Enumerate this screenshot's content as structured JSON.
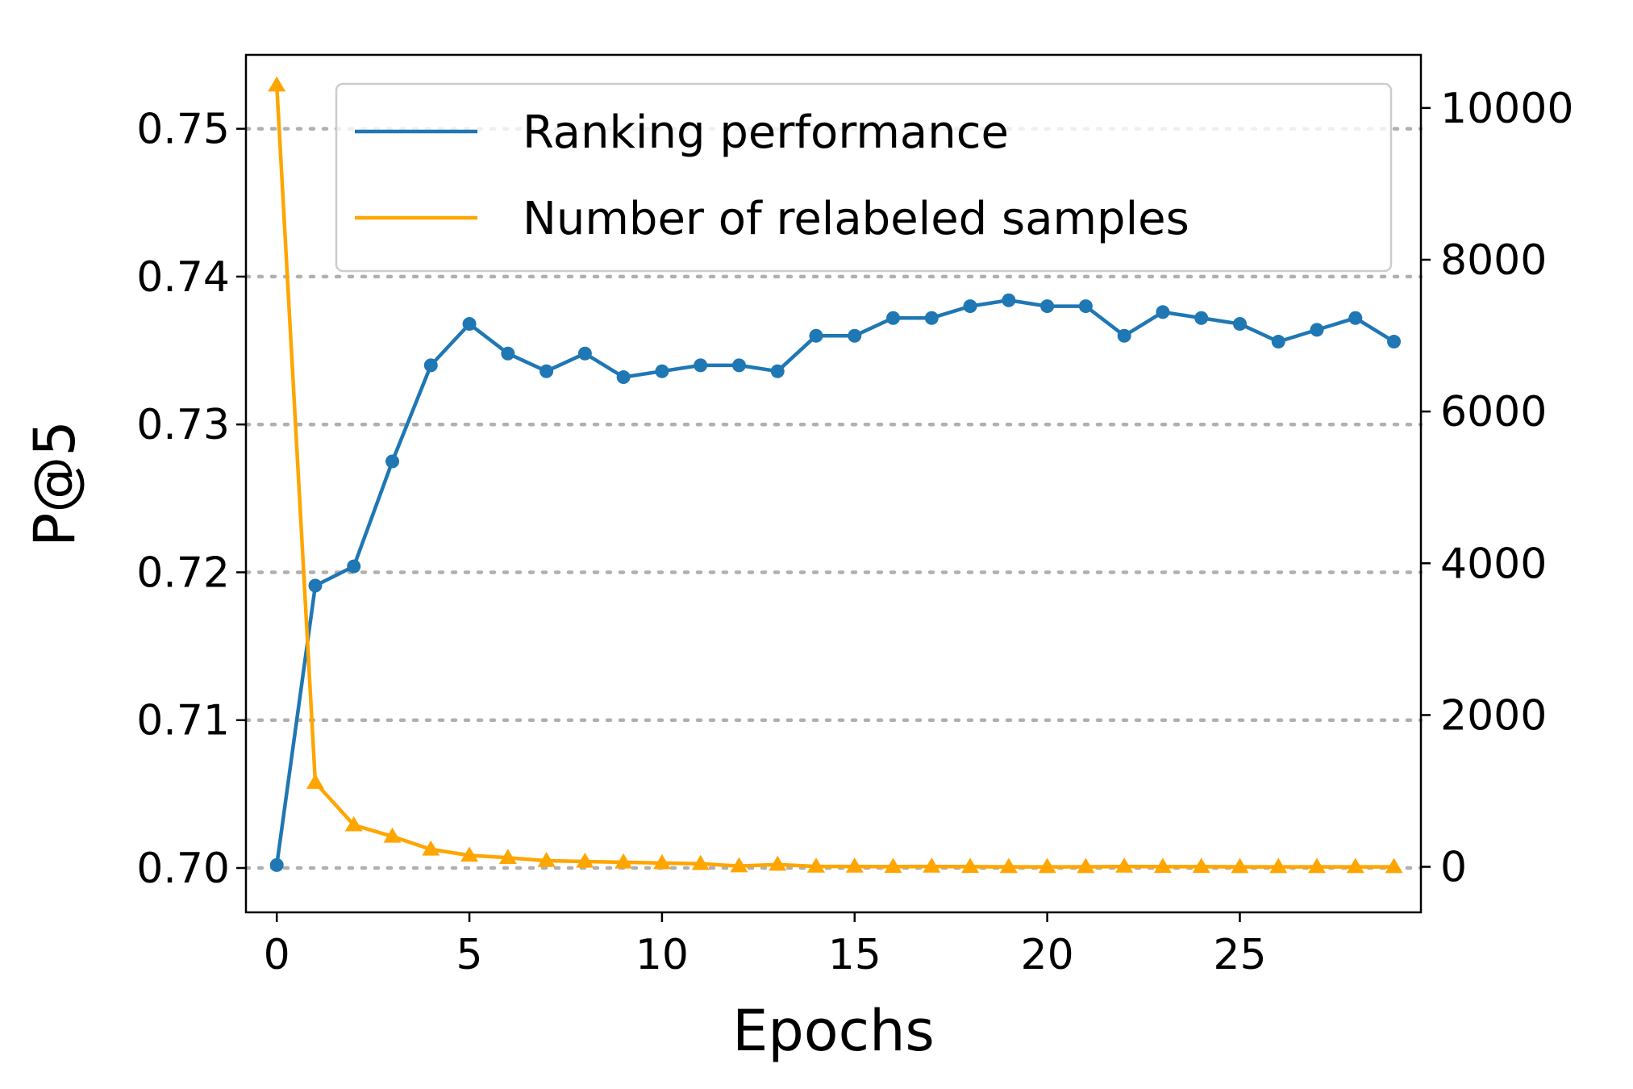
{
  "chart_data": {
    "type": "line",
    "title": "",
    "xlabel": "Epochs",
    "ylabel": "P@5",
    "y2label": "",
    "xlim": [
      -0.8,
      29.7
    ],
    "ylim": [
      0.697,
      0.755
    ],
    "y2lim": [
      -600,
      10700
    ],
    "xticks": [
      0,
      5,
      10,
      15,
      20,
      25
    ],
    "yticks": [
      0.7,
      0.71,
      0.72,
      0.73,
      0.74,
      0.75
    ],
    "ytick_labels": [
      "0.70",
      "0.71",
      "0.72",
      "0.73",
      "0.74",
      "0.75"
    ],
    "y2ticks": [
      0,
      2000,
      4000,
      6000,
      8000,
      10000
    ],
    "grid": "horizontal-dotted",
    "legend_position": "top-right",
    "series": [
      {
        "name": "Ranking performance",
        "axis": "left",
        "color": "#1f77b4",
        "marker": "circle",
        "x": [
          0,
          1,
          2,
          3,
          4,
          5,
          6,
          7,
          8,
          9,
          10,
          11,
          12,
          13,
          14,
          15,
          16,
          17,
          18,
          19,
          20,
          21,
          22,
          23,
          24,
          25,
          26,
          27,
          28,
          29
        ],
        "values": [
          0.7002,
          0.7191,
          0.7204,
          0.7275,
          0.734,
          0.7368,
          0.7348,
          0.7336,
          0.7348,
          0.7332,
          0.7336,
          0.734,
          0.734,
          0.7336,
          0.736,
          0.736,
          0.7372,
          0.7372,
          0.738,
          0.7384,
          0.738,
          0.738,
          0.736,
          0.7376,
          0.7372,
          0.7368,
          0.7356,
          0.7364,
          0.7372,
          0.7356
        ]
      },
      {
        "name": "Number of relabeled samples",
        "axis": "right",
        "color": "#ffa500",
        "marker": "triangle",
        "x": [
          0,
          1,
          2,
          3,
          4,
          5,
          6,
          7,
          8,
          9,
          10,
          11,
          12,
          13,
          14,
          15,
          16,
          17,
          18,
          19,
          20,
          21,
          22,
          23,
          24,
          25,
          26,
          27,
          28,
          29
        ],
        "values": [
          10300,
          1110,
          550,
          400,
          230,
          150,
          120,
          80,
          70,
          60,
          50,
          40,
          10,
          30,
          5,
          5,
          2,
          5,
          2,
          0,
          0,
          0,
          5,
          2,
          2,
          0,
          0,
          0,
          0,
          0
        ]
      }
    ]
  }
}
